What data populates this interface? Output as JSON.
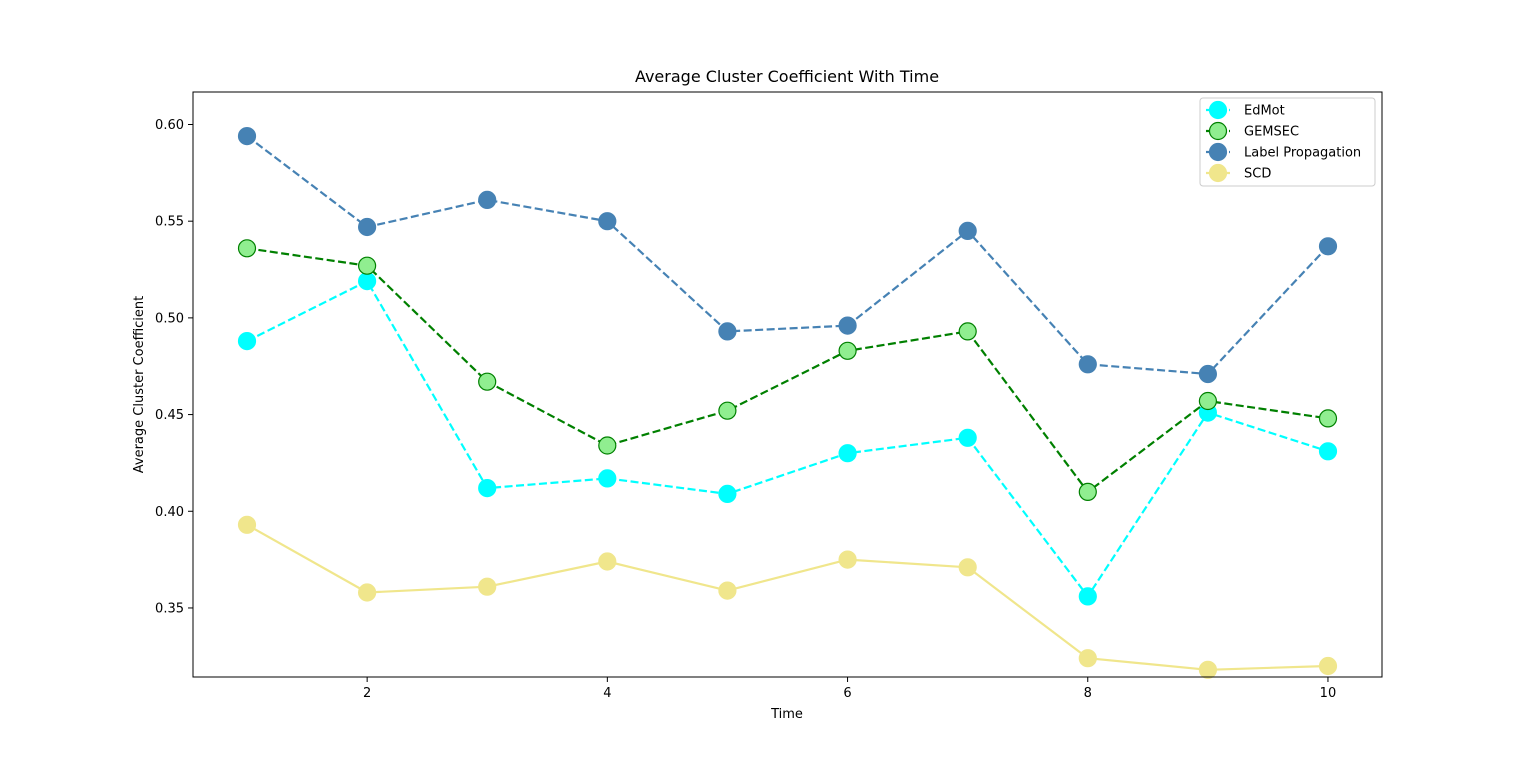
{
  "chart_data": {
    "type": "line",
    "title": "Average Cluster Coefficient With Time",
    "xlabel": "Time",
    "ylabel": "Average Cluster Coefficient",
    "x": [
      1,
      2,
      3,
      4,
      5,
      6,
      7,
      8,
      9,
      10
    ],
    "xlim": [
      0.55,
      10.45
    ],
    "ylim": [
      0.3143,
      0.6168
    ],
    "xticks": [
      2,
      4,
      6,
      8,
      10
    ],
    "yticks": [
      0.35,
      0.4,
      0.45,
      0.5,
      0.55,
      0.6
    ],
    "ytick_labels": [
      "0.35",
      "0.40",
      "0.45",
      "0.50",
      "0.55",
      "0.60"
    ],
    "grid": false,
    "legend_position": "top-right",
    "series": [
      {
        "name": "EdMot",
        "values": [
          0.488,
          0.519,
          0.412,
          0.417,
          0.409,
          0.43,
          0.438,
          0.356,
          0.451,
          0.431
        ],
        "color": "#00ffff",
        "marker_fill": "#00ffff",
        "marker_edge": "#00ffff",
        "line_style": "dashed"
      },
      {
        "name": "GEMSEC",
        "values": [
          0.536,
          0.527,
          0.467,
          0.434,
          0.452,
          0.483,
          0.493,
          0.41,
          0.457,
          0.448
        ],
        "color": "#008000",
        "marker_fill": "#90ee90",
        "marker_edge": "#008000",
        "line_style": "dashed"
      },
      {
        "name": "Label Propagation",
        "values": [
          0.594,
          0.547,
          0.561,
          0.55,
          0.493,
          0.496,
          0.545,
          0.476,
          0.471,
          0.537
        ],
        "color": "#4682b4",
        "marker_fill": "#4682b4",
        "marker_edge": "#4682b4",
        "line_style": "dashed"
      },
      {
        "name": "SCD",
        "values": [
          0.393,
          0.358,
          0.361,
          0.374,
          0.359,
          0.375,
          0.371,
          0.324,
          0.318,
          0.32
        ],
        "color": "#f0e68c",
        "marker_fill": "#f0e68c",
        "marker_edge": "#f0e68c",
        "line_style": "solid"
      }
    ]
  }
}
